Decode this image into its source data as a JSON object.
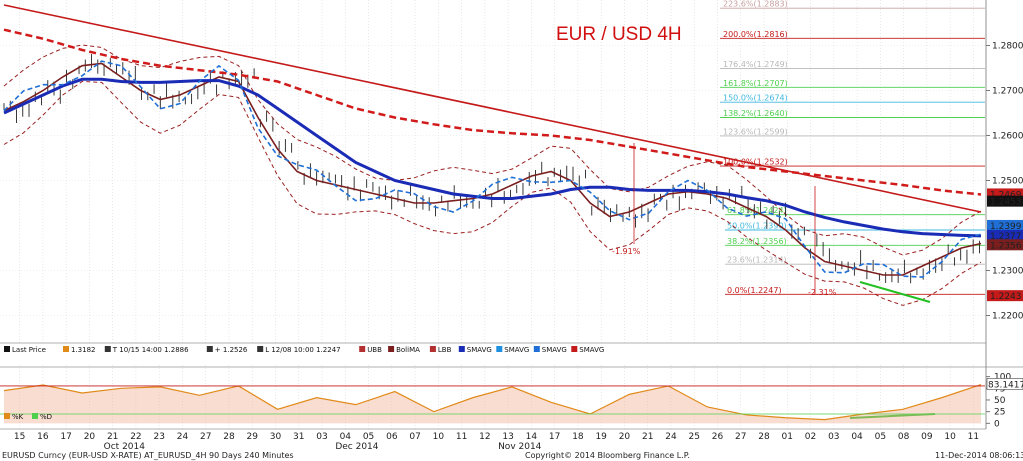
{
  "chart_data": {
    "type": "line",
    "title": "EUR / USD 4H",
    "price_axis": {
      "ylim": [
        1.215,
        1.289
      ],
      "ticks": [
        "1.2800",
        "1.2700",
        "1.2600",
        "1.2500",
        "1.2300",
        "1.2200"
      ]
    },
    "osc_axis": {
      "ylim": [
        -10,
        112
      ],
      "ticks": [
        "100",
        "75",
        "50",
        "25",
        "0"
      ]
    },
    "x_axis": {
      "labels": [
        "15",
        "16",
        "17",
        "20",
        "21",
        "22",
        "23",
        "24",
        "27",
        "28",
        "29",
        "30",
        "31",
        "03",
        "04",
        "05",
        "06",
        "07",
        "10",
        "11",
        "12",
        "13",
        "14",
        "17",
        "18",
        "19",
        "20",
        "21",
        "24",
        "25",
        "26",
        "27",
        "28",
        "01",
        "02",
        "03",
        "04",
        "05",
        "08",
        "09",
        "10",
        "11"
      ],
      "months": [
        {
          "label": "Oct 2014",
          "at": "22"
        },
        {
          "label": "Nov 2014",
          "at": "14"
        },
        {
          "label": "Dec 2014",
          "at": "05"
        }
      ]
    },
    "fib_levels": [
      {
        "label": "223.6%(1.2883)",
        "value": 1.2883,
        "color": "#c8a0a0"
      },
      {
        "label": "200.0%(1.2816)",
        "value": 1.2816,
        "color": "#c41a1a"
      },
      {
        "label": "176.4%(1.2749)",
        "value": 1.2749,
        "color": "#b8b8b8"
      },
      {
        "label": "161.8%(1.2707)",
        "value": 1.2707,
        "color": "#4fcf4f"
      },
      {
        "label": "150.0%(1.2674)",
        "value": 1.2674,
        "color": "#40b8e0"
      },
      {
        "label": "138.2%(1.2640)",
        "value": 1.264,
        "color": "#4fcf4f"
      },
      {
        "label": "123.6%(1.2599)",
        "value": 1.2599,
        "color": "#b8b8b8"
      },
      {
        "label": "100.0%(1.2532)",
        "value": 1.2532,
        "color": "#c41a1a"
      },
      {
        "label": "61.8%(1.2424)",
        "value": 1.2424,
        "color": "#4fcf4f"
      },
      {
        "label": "50.0%(1.2390)",
        "value": 1.239,
        "color": "#40b8e0"
      },
      {
        "label": "38.2%(1.2356)",
        "value": 1.2356,
        "color": "#4fcf4f"
      },
      {
        "label": "23.6%(1.2314)",
        "value": 1.2314,
        "color": "#b8b8b8"
      },
      {
        "label": "0.0%(1.2247)",
        "value": 1.2247,
        "color": "#c41a1a"
      }
    ],
    "price_tags": [
      {
        "label": "1.2469",
        "value": 1.2469,
        "bg": "#c41a1a",
        "fg": "#ffffff"
      },
      {
        "label": "1.2453",
        "value": 1.2453,
        "bg": "#111111",
        "fg": "#ffffff"
      },
      {
        "label": "1.2399",
        "value": 1.2399,
        "bg": "#1f6fd6",
        "fg": "#ffffff"
      },
      {
        "label": "1.2377",
        "value": 1.2377,
        "bg": "#1a2bb5",
        "fg": "#ffffff"
      },
      {
        "label": "1.2356",
        "value": 1.2356,
        "bg": "#7a1e1e",
        "fg": "#ffffff"
      },
      {
        "label": "1.2243",
        "value": 1.2243,
        "bg": "#c41a1a",
        "fg": "#ffffff"
      }
    ],
    "osc_tag": {
      "label": "83.1417",
      "value": 83.1417
    },
    "annotations": [
      {
        "label": "-1.91%"
      },
      {
        "label": "-2.31%"
      }
    ],
    "series": [
      {
        "name": "BoliMA",
        "color": "#7a1e1e",
        "x": [
          0,
          5,
          10,
          15,
          20,
          25,
          30,
          35,
          40,
          45,
          50,
          55,
          60,
          65,
          70,
          75,
          80,
          85,
          90,
          95,
          100,
          105,
          110,
          115,
          120,
          125,
          130,
          135,
          140,
          145,
          150,
          155,
          160,
          165,
          170,
          175,
          180,
          185,
          190,
          195,
          200,
          205,
          210,
          215,
          220,
          225,
          230,
          235,
          240,
          245,
          250
        ],
        "y": [
          1.2655,
          1.2675,
          1.27,
          1.273,
          1.2755,
          1.276,
          1.273,
          1.27,
          1.268,
          1.269,
          1.271,
          1.273,
          1.272,
          1.264,
          1.257,
          1.252,
          1.25,
          1.249,
          1.248,
          1.247,
          1.246,
          1.245,
          1.245,
          1.2455,
          1.246,
          1.247,
          1.249,
          1.251,
          1.252,
          1.25,
          1.245,
          1.242,
          1.243,
          1.245,
          1.247,
          1.2475,
          1.247,
          1.246,
          1.244,
          1.242,
          1.239,
          1.235,
          1.232,
          1.231,
          1.23,
          1.229,
          1.229,
          1.231,
          1.233,
          1.235,
          1.236
        ]
      },
      {
        "name": "SMAVG 100",
        "color": "#1a2bb5",
        "x": [
          0,
          5,
          10,
          15,
          20,
          25,
          30,
          35,
          40,
          45,
          50,
          55,
          60,
          65,
          70,
          75,
          80,
          85,
          90,
          95,
          100,
          105,
          110,
          115,
          120,
          125,
          130,
          135,
          140,
          145,
          150,
          155,
          160,
          165,
          170,
          175,
          180,
          185,
          190,
          195,
          200,
          205,
          210,
          215,
          220,
          225,
          230,
          235,
          240,
          245,
          250
        ],
        "y": [
          1.265,
          1.267,
          1.269,
          1.271,
          1.2725,
          1.2725,
          1.272,
          1.2718,
          1.2718,
          1.272,
          1.2722,
          1.2722,
          1.271,
          1.269,
          1.266,
          1.263,
          1.26,
          1.257,
          1.254,
          1.252,
          1.25,
          1.249,
          1.248,
          1.247,
          1.2465,
          1.246,
          1.246,
          1.2465,
          1.247,
          1.248,
          1.2485,
          1.2485,
          1.248,
          1.2478,
          1.2478,
          1.2478,
          1.2475,
          1.247,
          1.2462,
          1.2455,
          1.2445,
          1.243,
          1.2418,
          1.2408,
          1.24,
          1.2392,
          1.2386,
          1.2382,
          1.238,
          1.2378,
          1.2377
        ]
      },
      {
        "name": "SMAVG 200",
        "color": "#d11a1a",
        "dashed": true,
        "x": [
          0,
          10,
          20,
          30,
          40,
          50,
          60,
          70,
          80,
          90,
          100,
          110,
          120,
          130,
          140,
          150,
          160,
          170,
          180,
          190,
          200,
          210,
          220,
          230,
          240,
          250
        ],
        "y": [
          1.2835,
          1.2815,
          1.279,
          1.277,
          1.2755,
          1.2745,
          1.2735,
          1.272,
          1.269,
          1.266,
          1.264,
          1.2625,
          1.2612,
          1.2605,
          1.26,
          1.259,
          1.2575,
          1.256,
          1.2545,
          1.253,
          1.252,
          1.251,
          1.25,
          1.249,
          1.2478,
          1.2469
        ]
      }
    ],
    "trendline": {
      "from": [
        0,
        1.289
      ],
      "to": [
        250,
        1.243
      ],
      "color": "#c41a1a"
    },
    "oscillator": {
      "name": "%K",
      "x": [
        0,
        10,
        20,
        30,
        40,
        50,
        60,
        70,
        80,
        90,
        100,
        110,
        120,
        130,
        140,
        150,
        160,
        170,
        180,
        190,
        200,
        210,
        220,
        230,
        240,
        250
      ],
      "y": [
        70,
        82,
        65,
        75,
        78,
        60,
        80,
        30,
        55,
        40,
        68,
        25,
        55,
        78,
        45,
        20,
        62,
        80,
        35,
        18,
        12,
        8,
        20,
        30,
        55,
        83
      ]
    },
    "legend": [
      {
        "label": "Last Price",
        "color": "#111111"
      },
      {
        "label": "1.3182",
        "color": "#e08a1a"
      },
      {
        "label": "T 10/15 14:00 1.2886",
        "color": "#333333"
      },
      {
        "label": "+ 1.2526",
        "color": "#333333"
      },
      {
        "label": "L 12/08 10:00 1.2247",
        "color": "#333333"
      },
      {
        "label": "UBB",
        "color": "#b33030"
      },
      {
        "label": "BoliMA",
        "color": "#7a1e1e"
      },
      {
        "label": "LBB",
        "color": "#b33030"
      },
      {
        "label": "SMAVG",
        "color": "#1a2bb5"
      },
      {
        "label": "SMAVG",
        "color": "#1f8fe0"
      },
      {
        "label": "SMAVG",
        "color": "#1f6fd6"
      },
      {
        "label": "SMAVG",
        "color": "#c41a1a"
      }
    ],
    "osc_legend": [
      {
        "label": "%K",
        "color": "#e08a1a"
      },
      {
        "label": "%D",
        "color": "#4fcf4f"
      }
    ],
    "footer": {
      "left": "EURUSD Curncy (EUR-USD X-RATE) AT_EURUSD_4H 90 Days 240 Minutes",
      "center": "Copyright© 2014 Bloomberg Finance L.P.",
      "right": "11-Dec-2014 08:06:13"
    }
  }
}
